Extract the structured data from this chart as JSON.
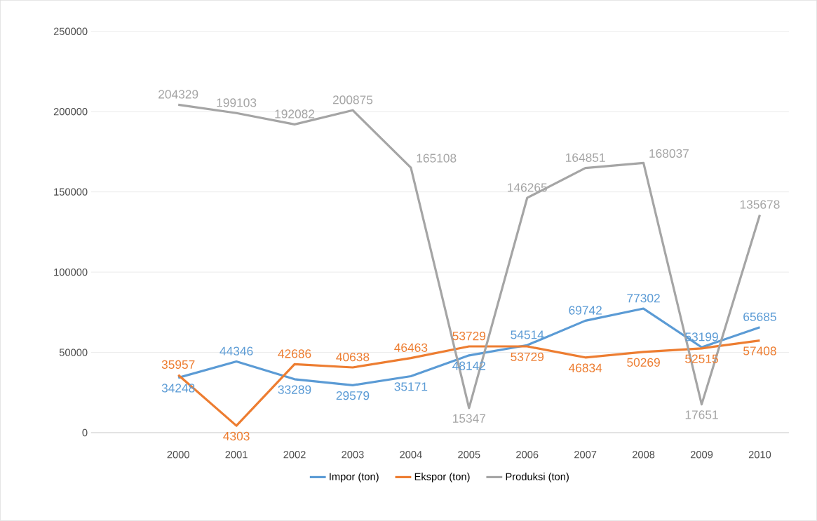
{
  "chart_data": {
    "type": "line",
    "categories": [
      null,
      "2000",
      "2001",
      "2002",
      "2003",
      "2004",
      "2005",
      "2006",
      "2007",
      "2008",
      "2009",
      "2010"
    ],
    "series": [
      {
        "name": "Impor (ton)",
        "color": "#5b9bd5",
        "values": [
          null,
          34248,
          44346,
          33289,
          29579,
          35171,
          48142,
          54514,
          69742,
          77302,
          53199,
          65685
        ]
      },
      {
        "name": "Ekspor (ton)",
        "color": "#ed7d31",
        "values": [
          null,
          35957,
          4303,
          42686,
          40638,
          46463,
          53729,
          53729,
          46834,
          50269,
          52515,
          57408
        ]
      },
      {
        "name": "Produksi (ton)",
        "color": "#a5a5a5",
        "values": [
          null,
          204329,
          199103,
          192082,
          200875,
          165108,
          15347,
          146265,
          164851,
          168037,
          17651,
          135678
        ]
      }
    ],
    "ylim": [
      0,
      250000
    ],
    "yticks": [
      0,
      50000,
      100000,
      150000,
      200000,
      250000
    ],
    "grid": "y",
    "legend": "bottom",
    "data_labels": true,
    "marker": "none",
    "line_style": "solid"
  }
}
